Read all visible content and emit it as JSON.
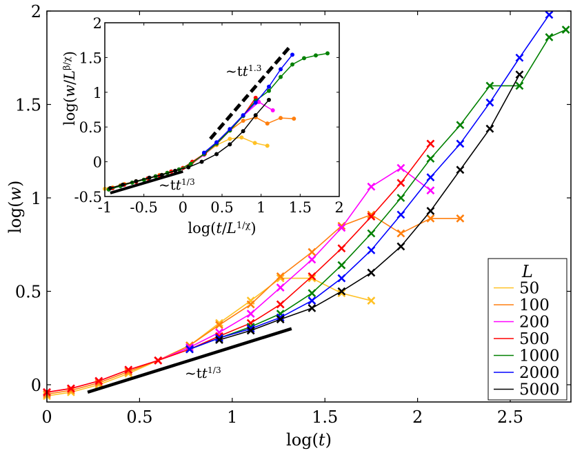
{
  "chart_data": [
    {
      "type": "line",
      "title": "",
      "xlabel": "log(t)",
      "ylabel": "log(w)",
      "xlim": [
        0,
        2.8
      ],
      "ylim": [
        -0.08,
        2.0
      ],
      "xticks": [
        0,
        0.5,
        1,
        1.5,
        2,
        2.5
      ],
      "xtick_labels": [
        "0",
        "0.5",
        "1",
        "1.5",
        "2",
        "2.5"
      ],
      "yticks": [
        0,
        0.5,
        1,
        1.5,
        2
      ],
      "ytick_labels": [
        "0",
        "0.5",
        "1",
        "1.5",
        "2"
      ],
      "grid": false,
      "marker": "x",
      "legend": {
        "title": "L",
        "position": "lower right"
      },
      "series": [
        {
          "name": "50",
          "color": "#ffc125",
          "x": [
            0,
            0.13,
            0.28,
            0.44,
            0.6,
            0.77,
            0.93,
            1.1,
            1.26,
            1.43,
            1.59,
            1.75
          ],
          "y": [
            -0.06,
            -0.04,
            0.0,
            0.06,
            0.13,
            0.21,
            0.33,
            0.45,
            0.57,
            0.57,
            0.49,
            0.45
          ]
        },
        {
          "name": "100",
          "color": "#ff7f0e",
          "x": [
            0,
            0.13,
            0.28,
            0.44,
            0.6,
            0.77,
            0.93,
            1.1,
            1.26,
            1.43,
            1.59,
            1.75,
            1.91,
            2.07,
            2.23
          ],
          "y": [
            -0.05,
            -0.03,
            0.01,
            0.07,
            0.13,
            0.21,
            0.32,
            0.43,
            0.58,
            0.71,
            0.85,
            0.91,
            0.81,
            0.89,
            0.89
          ]
        },
        {
          "name": "200",
          "color": "#ff00ff",
          "x": [
            0,
            0.13,
            0.28,
            0.44,
            0.6,
            0.77,
            0.93,
            1.1,
            1.26,
            1.43,
            1.59,
            1.75,
            1.91,
            2.07
          ],
          "y": [
            -0.04,
            -0.02,
            0.02,
            0.08,
            0.13,
            0.2,
            0.28,
            0.38,
            0.52,
            0.67,
            0.84,
            1.06,
            1.16,
            1.04
          ]
        },
        {
          "name": "500",
          "color": "#ff0000",
          "x": [
            0,
            0.13,
            0.28,
            0.44,
            0.6,
            0.77,
            0.93,
            1.1,
            1.26,
            1.43,
            1.59,
            1.75,
            1.91,
            2.07
          ],
          "y": [
            -0.04,
            -0.02,
            0.02,
            0.08,
            0.13,
            0.19,
            0.26,
            0.33,
            0.43,
            0.58,
            0.73,
            0.9,
            1.08,
            1.29
          ]
        },
        {
          "name": "1000",
          "color": "#008000",
          "x": [
            0.77,
            0.93,
            1.1,
            1.26,
            1.43,
            1.59,
            1.75,
            1.91,
            2.07,
            2.23,
            2.39,
            2.55,
            2.71,
            2.8
          ],
          "y": [
            0.19,
            0.25,
            0.31,
            0.38,
            0.49,
            0.64,
            0.81,
            1.0,
            1.21,
            1.39,
            1.6,
            1.6,
            1.86,
            1.9
          ]
        },
        {
          "name": "2000",
          "color": "#0000ff",
          "x": [
            0.77,
            0.93,
            1.1,
            1.26,
            1.43,
            1.59,
            1.75,
            1.91,
            2.07,
            2.23,
            2.39,
            2.55,
            2.71
          ],
          "y": [
            0.19,
            0.25,
            0.3,
            0.36,
            0.45,
            0.57,
            0.72,
            0.91,
            1.11,
            1.29,
            1.51,
            1.75,
            1.98
          ]
        },
        {
          "name": "5000",
          "color": "#000000",
          "x": [
            0.93,
            1.1,
            1.26,
            1.43,
            1.59,
            1.75,
            1.91,
            2.07,
            2.23,
            2.39,
            2.55
          ],
          "y": [
            0.24,
            0.29,
            0.35,
            0.41,
            0.5,
            0.6,
            0.74,
            0.93,
            1.15,
            1.37,
            1.66
          ]
        }
      ],
      "annotations": [
        {
          "text": "~t^{1/3}",
          "type": "guide-line",
          "x": [
            0.22,
            1.32
          ],
          "y": [
            -0.04,
            0.3
          ],
          "color": "#000000"
        }
      ]
    },
    {
      "type": "line",
      "title": "inset",
      "xlabel": "log(t/L^{1/χ})",
      "ylabel": "log(w/L^{β/χ})",
      "xlim": [
        -1,
        2
      ],
      "ylim": [
        -0.5,
        2
      ],
      "xticks": [
        -1,
        -0.5,
        0,
        0.5,
        1,
        1.5,
        2
      ],
      "xtick_labels": [
        "-1",
        "-0.5",
        "0",
        "0.5",
        "1",
        "1.5",
        "2"
      ],
      "yticks": [
        -0.5,
        0,
        0.5,
        1,
        1.5,
        2
      ],
      "ytick_labels": [
        "-0.5",
        "0",
        "0.5",
        "1",
        "1.5",
        "2"
      ],
      "marker": "o",
      "series": [
        {
          "name": "50",
          "color": "#ffc125",
          "x": [
            -1.0,
            -0.9,
            -0.75,
            -0.6,
            -0.45,
            -0.3,
            -0.15,
            0.0,
            0.12,
            0.28,
            0.43,
            0.6,
            0.75,
            0.92,
            1.08
          ],
          "y": [
            -0.39,
            -0.37,
            -0.32,
            -0.28,
            -0.24,
            -0.19,
            -0.14,
            -0.09,
            0.0,
            0.11,
            0.24,
            0.33,
            0.35,
            0.27,
            0.23
          ]
        },
        {
          "name": "100",
          "color": "#ff7f0e",
          "x": [
            -0.95,
            -0.8,
            -0.65,
            -0.5,
            -0.35,
            -0.2,
            -0.05,
            0.1,
            0.27,
            0.43,
            0.6,
            0.77,
            0.93,
            1.08,
            1.25,
            1.42
          ],
          "y": [
            -0.39,
            -0.34,
            -0.3,
            -0.26,
            -0.21,
            -0.16,
            -0.11,
            -0.04,
            0.1,
            0.25,
            0.45,
            0.59,
            0.64,
            0.55,
            0.63,
            0.62
          ]
        },
        {
          "name": "200",
          "color": "#ff00ff",
          "x": [
            -0.95,
            -0.8,
            -0.65,
            -0.5,
            -0.35,
            -0.2,
            -0.05,
            0.1,
            0.27,
            0.43,
            0.6,
            0.77,
            0.97,
            1.15
          ],
          "y": [
            -0.4,
            -0.35,
            -0.3,
            -0.26,
            -0.21,
            -0.16,
            -0.11,
            -0.03,
            0.1,
            0.26,
            0.45,
            0.66,
            0.86,
            0.74
          ]
        },
        {
          "name": "500",
          "color": "#ff0000",
          "x": [
            -0.9,
            -0.75,
            -0.6,
            -0.45,
            -0.3,
            -0.15,
            0.0,
            0.12,
            0.28,
            0.43,
            0.6,
            0.77,
            0.93
          ],
          "y": [
            -0.38,
            -0.33,
            -0.29,
            -0.24,
            -0.2,
            -0.14,
            -0.09,
            0.0,
            0.12,
            0.27,
            0.45,
            0.66,
            0.92
          ]
        },
        {
          "name": "1000",
          "color": "#008000",
          "x": [
            -0.95,
            -0.8,
            -0.65,
            -0.5,
            -0.35,
            -0.2,
            -0.05,
            0.1,
            0.27,
            0.43,
            0.6,
            0.77,
            0.93,
            1.1,
            1.25,
            1.4,
            1.55,
            1.7,
            1.85
          ],
          "y": [
            -0.4,
            -0.35,
            -0.3,
            -0.26,
            -0.21,
            -0.16,
            -0.11,
            -0.03,
            0.11,
            0.26,
            0.45,
            0.66,
            0.88,
            1.02,
            1.22,
            1.4,
            1.49,
            1.53,
            1.56
          ]
        },
        {
          "name": "2000",
          "color": "#0000ff",
          "x": [
            0.27,
            0.43,
            0.6,
            0.77,
            0.93,
            1.1,
            1.25,
            1.4
          ],
          "y": [
            0.13,
            0.28,
            0.47,
            0.67,
            0.85,
            1.08,
            1.33,
            1.54
          ]
        },
        {
          "name": "5000",
          "color": "#000000",
          "x": [
            -0.93,
            -0.77,
            -0.6,
            -0.43,
            -0.27,
            -0.1,
            0.07,
            0.24,
            0.43,
            0.6,
            0.77,
            0.93,
            1.1
          ],
          "y": [
            -0.38,
            -0.33,
            -0.28,
            -0.23,
            -0.19,
            -0.13,
            -0.08,
            0.0,
            0.11,
            0.25,
            0.44,
            0.67,
            0.89
          ]
        }
      ],
      "annotations": [
        {
          "text": "~t^{1.3}",
          "type": "dashed-guide-line",
          "x": [
            0.35,
            1.38
          ],
          "y": [
            0.33,
            1.67
          ],
          "color": "#000000"
        },
        {
          "text": "~t^{1/3}",
          "type": "guide-line",
          "x": [
            -0.93,
            0.0
          ],
          "y": [
            -0.45,
            -0.14
          ],
          "color": "#000000"
        }
      ]
    }
  ],
  "labels": {
    "main_xlabel": "log(",
    "main_xvar": "t",
    "main_ylabel_pre": "log(",
    "main_yvar": "w",
    "close": ")",
    "legend_title": "L",
    "guide_main": "~t",
    "guide_main_exp": "1/3",
    "inset_guide_low": "~t",
    "inset_guide_low_exp": "1/3",
    "inset_guide_high": "~t",
    "inset_guide_high_exp": "1.3",
    "inset_xlabel": "log(t/L",
    "inset_xlabel_exp": "1/χ",
    "inset_ylabel": "log(w/L",
    "inset_ylabel_exp": "β/χ"
  }
}
